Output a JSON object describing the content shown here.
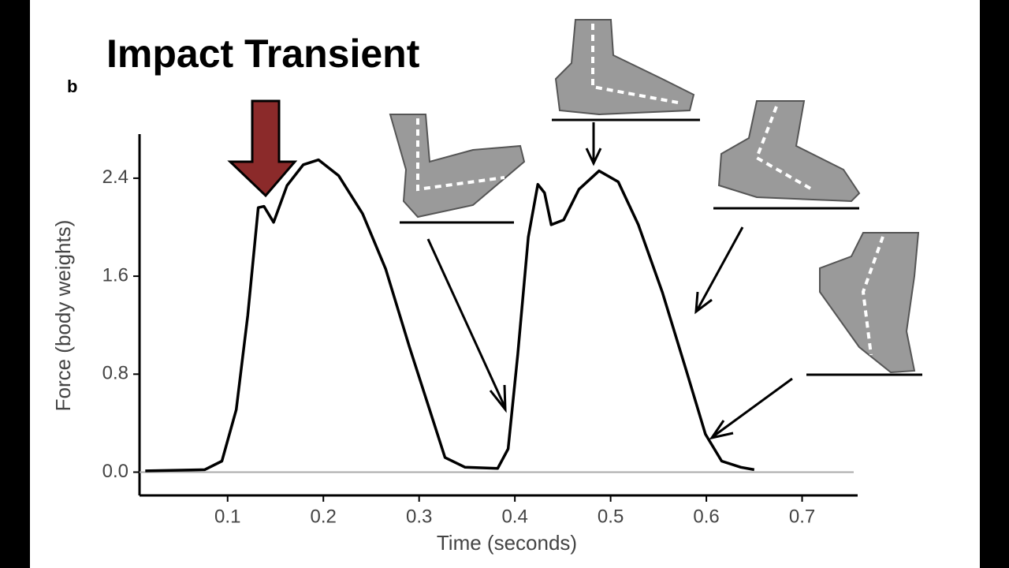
{
  "chart_data": {
    "type": "line",
    "title": "Impact Transient",
    "panel_label": "b",
    "x_label": "Time (seconds)",
    "y_label": "Force (body weights)",
    "x": [
      0.014,
      0.076,
      0.094,
      0.109,
      0.121,
      0.132,
      0.138,
      0.148,
      0.162,
      0.179,
      0.195,
      0.216,
      0.241,
      0.265,
      0.29,
      0.311,
      0.327,
      0.348,
      0.382,
      0.393,
      0.403,
      0.414,
      0.424,
      0.431,
      0.438,
      0.451,
      0.467,
      0.488,
      0.508,
      0.529,
      0.554,
      0.579,
      0.599,
      0.616,
      0.636,
      0.65
    ],
    "series": [
      {
        "color": "#000000",
        "values": [
          0.01,
          0.02,
          0.09,
          0.51,
          1.28,
          2.16,
          2.17,
          2.04,
          2.34,
          2.51,
          2.55,
          2.42,
          2.11,
          1.66,
          1.02,
          0.51,
          0.12,
          0.04,
          0.03,
          0.19,
          0.96,
          1.92,
          2.35,
          2.28,
          2.02,
          2.06,
          2.31,
          2.46,
          2.37,
          2.02,
          1.47,
          0.83,
          0.31,
          0.09,
          0.04,
          0.02
        ]
      }
    ],
    "xlim": [
      0.008,
      0.758
    ],
    "ylim": [
      -0.19,
      2.76
    ],
    "xticks": [
      0.1,
      0.2,
      0.3,
      0.4,
      0.5,
      0.6,
      0.7
    ],
    "yticks": [
      {
        "value": 0,
        "label": "0.0"
      },
      {
        "value": 0.8,
        "label": "0.8"
      },
      {
        "value": 1.6,
        "label": "1.6"
      },
      {
        "value": 2.4,
        "label": "2.4"
      }
    ]
  }
}
